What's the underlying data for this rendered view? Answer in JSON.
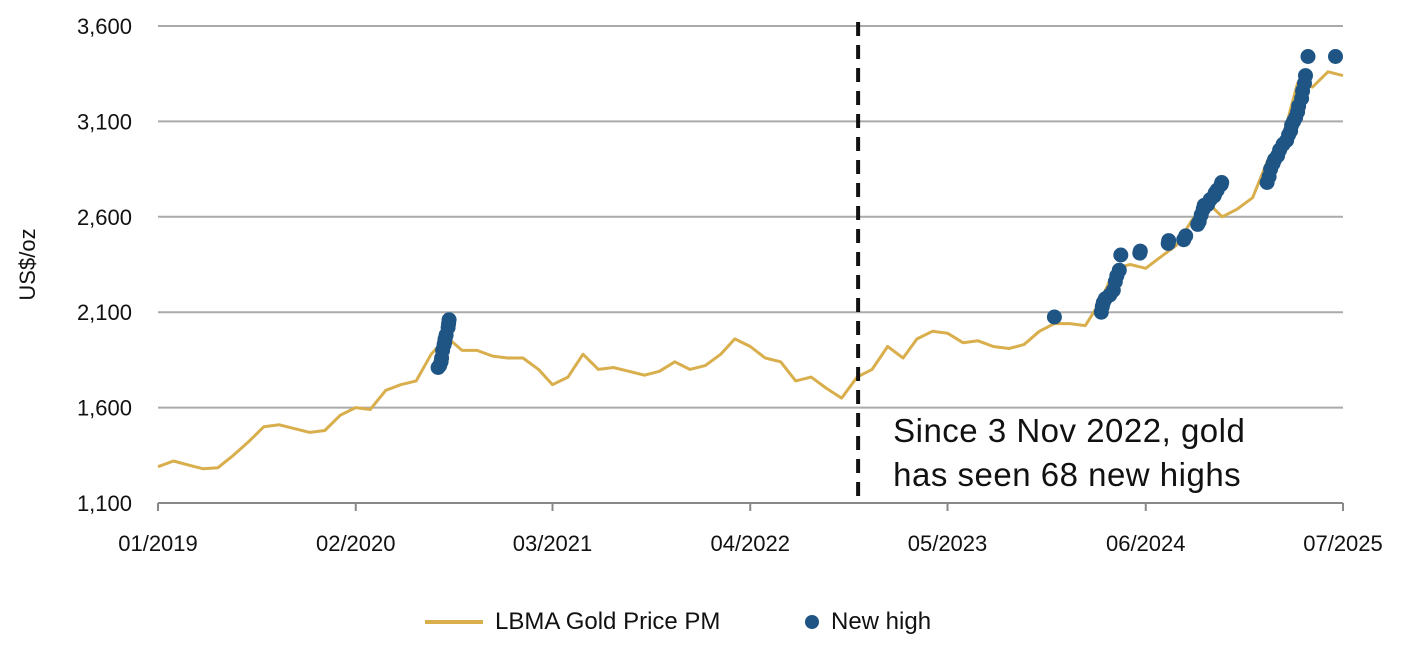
{
  "chart_data": {
    "type": "line",
    "ylabel": "US$/oz",
    "ylim": [
      1100,
      3600
    ],
    "yticks": [
      1100,
      1600,
      2100,
      2600,
      3100,
      3600
    ],
    "ytick_labels": [
      "1,100",
      "1,600",
      "2,100",
      "2,600",
      "3,100",
      "3,600"
    ],
    "xlim": [
      "2019-01",
      "2025-07"
    ],
    "xticks": [
      "2019-01",
      "2020-02",
      "2021-03",
      "2022-04",
      "2023-05",
      "2024-06",
      "2025-07"
    ],
    "xtick_labels": [
      "01/2019",
      "02/2020",
      "03/2021",
      "04/2022",
      "05/2023",
      "06/2024",
      "07/2025"
    ],
    "grid": "horizontal",
    "legend_position": "bottom",
    "marker_line_date": "2022-11-03",
    "annotation": [
      "Since 3 Nov 2022, gold",
      "has seen 68 new highs"
    ],
    "series": [
      {
        "name": "LBMA Gold Price PM",
        "type": "line",
        "color": "#D9AE4C",
        "x": [
          "2019-01",
          "2019-02",
          "2019-03",
          "2019-04",
          "2019-05",
          "2019-06",
          "2019-07",
          "2019-08",
          "2019-09",
          "2019-10",
          "2019-11",
          "2019-12",
          "2020-01",
          "2020-02",
          "2020-03",
          "2020-04",
          "2020-05",
          "2020-06",
          "2020-07",
          "2020-08",
          "2020-09",
          "2020-10",
          "2020-11",
          "2020-12",
          "2021-01",
          "2021-02",
          "2021-03",
          "2021-04",
          "2021-05",
          "2021-06",
          "2021-07",
          "2021-08",
          "2021-09",
          "2021-10",
          "2021-11",
          "2021-12",
          "2022-01",
          "2022-02",
          "2022-03",
          "2022-04",
          "2022-05",
          "2022-06",
          "2022-07",
          "2022-08",
          "2022-09",
          "2022-10",
          "2022-11",
          "2022-12",
          "2023-01",
          "2023-02",
          "2023-03",
          "2023-04",
          "2023-05",
          "2023-06",
          "2023-07",
          "2023-08",
          "2023-09",
          "2023-10",
          "2023-11",
          "2023-12",
          "2024-01",
          "2024-02",
          "2024-03",
          "2024-04",
          "2024-05",
          "2024-06",
          "2024-07",
          "2024-08",
          "2024-09",
          "2024-10",
          "2024-11",
          "2024-12",
          "2025-01",
          "2025-02",
          "2025-03",
          "2025-04",
          "2025-05",
          "2025-06",
          "2025-07"
        ],
        "y": [
          1290,
          1320,
          1300,
          1280,
          1285,
          1350,
          1420,
          1500,
          1510,
          1490,
          1470,
          1480,
          1560,
          1600,
          1590,
          1690,
          1720,
          1740,
          1880,
          1970,
          1900,
          1900,
          1870,
          1860,
          1860,
          1800,
          1720,
          1760,
          1880,
          1800,
          1810,
          1790,
          1770,
          1790,
          1840,
          1800,
          1820,
          1880,
          1960,
          1920,
          1860,
          1840,
          1740,
          1760,
          1700,
          1650,
          1760,
          1800,
          1920,
          1860,
          1960,
          2000,
          1990,
          1940,
          1950,
          1920,
          1910,
          1930,
          2000,
          2040,
          2040,
          2030,
          2150,
          2330,
          2350,
          2330,
          2390,
          2450,
          2580,
          2680,
          2600,
          2640,
          2700,
          2900,
          3000,
          3300,
          3280,
          3360,
          3340
        ]
      },
      {
        "name": "New high",
        "type": "scatter",
        "color": "#1F5584",
        "x": [
          "2020-07-15",
          "2020-07-18",
          "2020-07-21",
          "2020-07-22",
          "2020-07-24",
          "2020-07-27",
          "2020-07-28",
          "2020-07-29",
          "2020-07-31",
          "2020-08-04",
          "2020-08-05",
          "2020-08-06",
          "2023-12-01",
          "2024-03-04",
          "2024-03-06",
          "2024-03-08",
          "2024-03-12",
          "2024-03-21",
          "2024-03-28",
          "2024-04-01",
          "2024-04-04",
          "2024-04-09",
          "2024-04-12",
          "2024-05-20",
          "2024-05-21",
          "2024-07-16",
          "2024-07-17",
          "2024-08-16",
          "2024-08-20",
          "2024-09-13",
          "2024-09-16",
          "2024-09-20",
          "2024-09-24",
          "2024-09-26",
          "2024-10-03",
          "2024-10-08",
          "2024-10-16",
          "2024-10-18",
          "2024-10-22",
          "2024-10-30",
          "2024-10-31",
          "2025-01-30",
          "2025-02-03",
          "2025-02-06",
          "2025-02-11",
          "2025-02-14",
          "2025-02-20",
          "2025-02-24",
          "2025-03-03",
          "2025-03-10",
          "2025-03-14",
          "2025-03-18",
          "2025-03-20",
          "2025-03-24",
          "2025-03-28",
          "2025-04-01",
          "2025-04-03",
          "2025-04-09",
          "2025-04-11",
          "2025-04-15",
          "2025-04-17",
          "2025-04-22",
          "2025-06-16"
        ],
        "y": [
          1810,
          1820,
          1840,
          1860,
          1900,
          1930,
          1940,
          1960,
          1980,
          2020,
          2040,
          2060,
          2075,
          2100,
          2130,
          2150,
          2170,
          2190,
          2215,
          2260,
          2290,
          2320,
          2400,
          2410,
          2420,
          2460,
          2475,
          2480,
          2500,
          2560,
          2575,
          2610,
          2640,
          2660,
          2665,
          2690,
          2710,
          2725,
          2740,
          2770,
          2780,
          2780,
          2810,
          2850,
          2880,
          2900,
          2920,
          2950,
          2980,
          3000,
          3030,
          3050,
          3080,
          3100,
          3120,
          3150,
          3180,
          3220,
          3260,
          3300,
          3340,
          3440,
          3440
        ]
      }
    ]
  }
}
